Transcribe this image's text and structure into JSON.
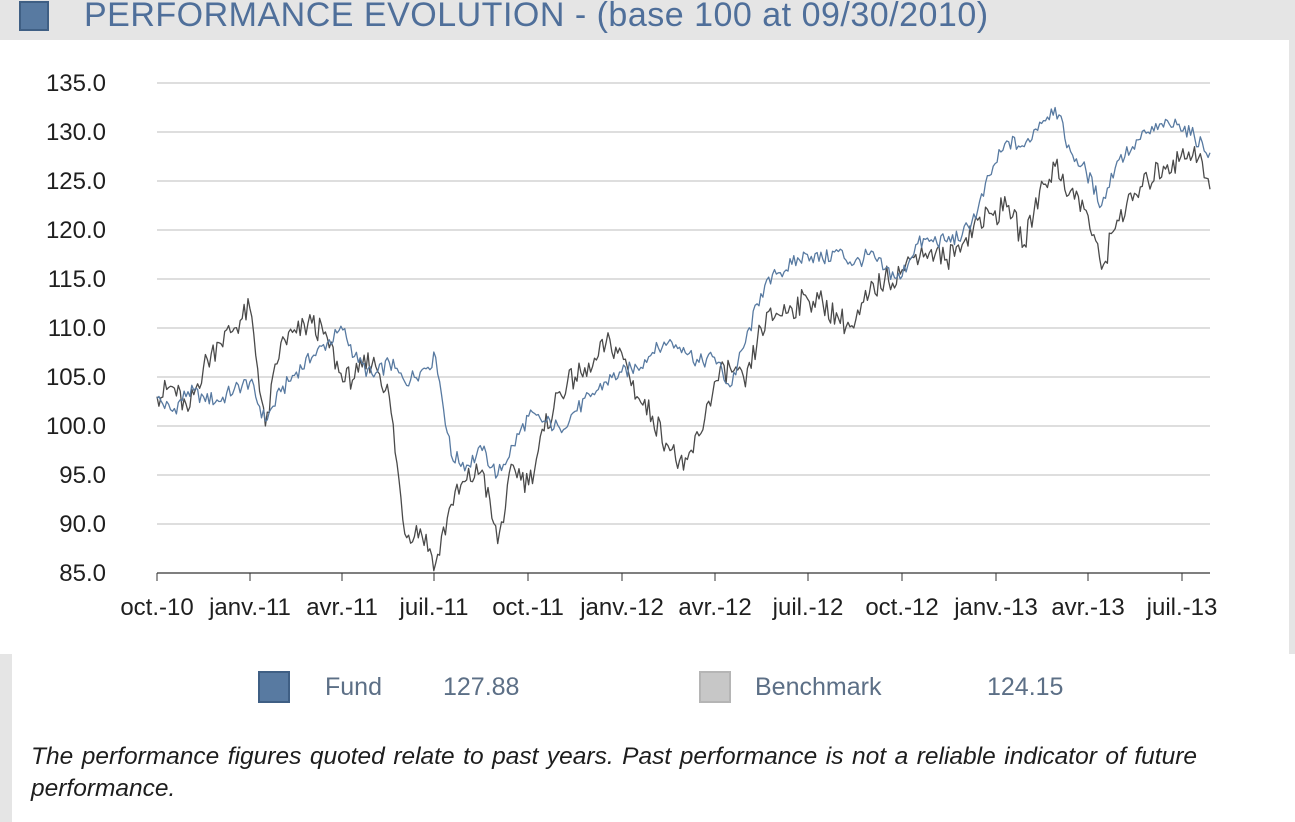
{
  "header": {
    "title": "PERFORMANCE EVOLUTION - (base 100 at 09/30/2010)",
    "square_color": "#587aa1"
  },
  "legend": [
    {
      "name": "Fund",
      "value": "127.88",
      "color": "#587aa1"
    },
    {
      "name": "Benchmark",
      "value": "124.15",
      "color": "#c7c7c7"
    }
  ],
  "disclaimer": "The performance figures quoted relate to past years. Past performance is not a reliable indicator of future performance.",
  "chart_data": {
    "type": "line",
    "title": "",
    "xlabel": "",
    "ylabel": "",
    "ylim": [
      85,
      135
    ],
    "y_ticks": [
      "85.0",
      "90.0",
      "95.0",
      "100.0",
      "105.0",
      "110.0",
      "115.0",
      "120.0",
      "125.0",
      "130.0",
      "135.0"
    ],
    "x_tick_labels": [
      "oct.-10",
      "janv.-11",
      "avr.-11",
      "juil.-11",
      "oct.-11",
      "janv.-12",
      "avr.-12",
      "juil.-12",
      "oct.-12",
      "janv.-13",
      "avr.-13",
      "juil.-13"
    ],
    "x_range": [
      0,
      34
    ],
    "grid": true,
    "series": [
      {
        "name": "Fund",
        "color": "#587aa1",
        "x": [
          0,
          0.5,
          1,
          1.5,
          2,
          2.5,
          3,
          3.5,
          4,
          4.5,
          5,
          5.5,
          6,
          6.5,
          7,
          7.5,
          8,
          8.5,
          9,
          9.5,
          10,
          10.5,
          11,
          11.5,
          12,
          12.5,
          13,
          13.5,
          14,
          14.5,
          15,
          15.5,
          16,
          16.5,
          17,
          17.5,
          18,
          18.5,
          19,
          19.5,
          20,
          20.5,
          21,
          21.5,
          22,
          22.5,
          23,
          23.5,
          24,
          24.5,
          25,
          25.5,
          26,
          26.5,
          27,
          27.5,
          28,
          28.5,
          29,
          29.5,
          30,
          30.5,
          31,
          31.5,
          32,
          32.5,
          33,
          33.5,
          34
        ],
        "values": [
          102.8,
          101.5,
          103.5,
          103.0,
          102.5,
          103.8,
          104.5,
          100.5,
          103.5,
          105.5,
          107.0,
          108.5,
          109.8,
          106.5,
          105.0,
          106.5,
          104.5,
          105.5,
          107.0,
          97.0,
          96.0,
          97.5,
          95.0,
          98.0,
          101.0,
          100.5,
          99.8,
          101.5,
          103.0,
          104.5,
          105.5,
          106.0,
          107.5,
          108.5,
          108.0,
          106.5,
          107.0,
          104.0,
          108.5,
          113.5,
          115.5,
          116.5,
          117.5,
          117.0,
          117.8,
          116.5,
          117.5,
          116.0,
          115.0,
          118.5,
          119.0,
          118.8,
          119.5,
          122.0,
          126.5,
          129.0,
          128.5,
          131.0,
          132.5,
          128.0,
          126.0,
          122.5,
          127.0,
          128.5,
          130.0,
          130.5,
          130.8,
          129.5,
          127.88
        ]
      },
      {
        "name": "Benchmark",
        "color": "#4a4a4a",
        "x": [
          0,
          0.5,
          1,
          1.5,
          2,
          2.5,
          3,
          3.5,
          4,
          4.5,
          5,
          5.5,
          6,
          6.5,
          7,
          7.5,
          8,
          8.5,
          9,
          9.5,
          10,
          10.5,
          11,
          11.5,
          12,
          12.5,
          13,
          13.5,
          14,
          14.5,
          15,
          15.5,
          16,
          16.5,
          17,
          17.5,
          18,
          18.5,
          19,
          19.5,
          20,
          20.5,
          21,
          21.5,
          22,
          22.5,
          23,
          23.5,
          24,
          24.5,
          25,
          25.5,
          26,
          26.5,
          27,
          27.5,
          28,
          28.5,
          29,
          29.5,
          30,
          30.5,
          31,
          31.5,
          32,
          32.5,
          33,
          33.5,
          34
        ],
        "values": [
          103.0,
          104.0,
          101.5,
          106.0,
          108.5,
          110.0,
          112.0,
          100.0,
          108.5,
          109.5,
          110.5,
          109.0,
          104.5,
          105.5,
          107.0,
          103.0,
          89.0,
          89.5,
          86.0,
          92.0,
          94.5,
          95.5,
          88.0,
          96.0,
          94.0,
          99.5,
          103.5,
          105.0,
          105.5,
          108.5,
          107.5,
          103.0,
          101.0,
          98.0,
          95.5,
          99.0,
          104.5,
          106.0,
          104.0,
          110.0,
          111.5,
          112.0,
          113.0,
          112.5,
          111.0,
          110.0,
          113.5,
          115.0,
          115.5,
          117.5,
          118.0,
          117.0,
          118.5,
          121.0,
          121.5,
          122.5,
          118.5,
          124.0,
          126.5,
          124.0,
          122.0,
          116.0,
          121.0,
          123.0,
          125.0,
          126.5,
          127.0,
          128.5,
          124.15
        ]
      }
    ]
  }
}
